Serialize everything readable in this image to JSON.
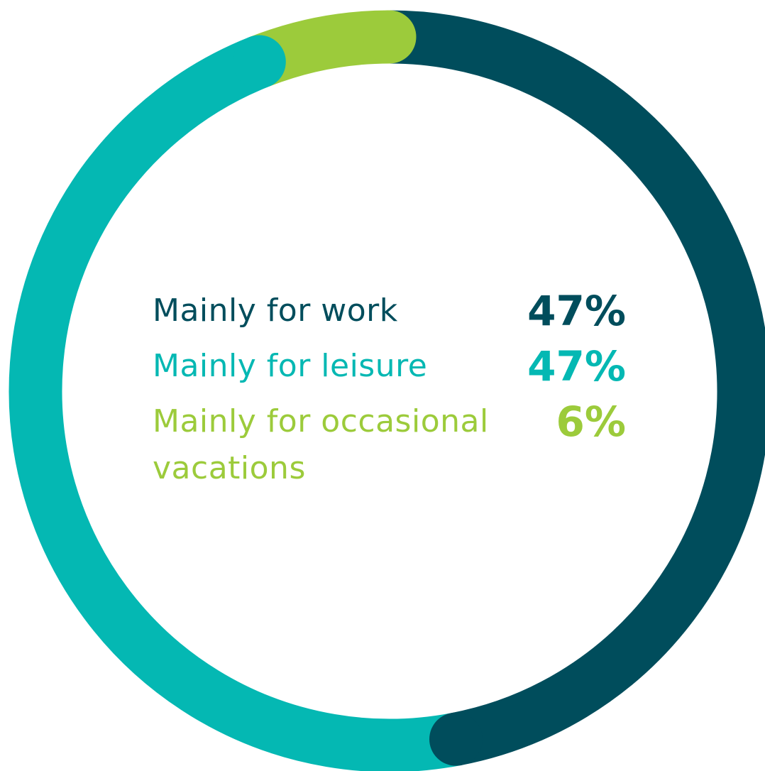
{
  "chart_data": {
    "type": "donut",
    "categories": [
      "Mainly for work",
      "Mainly for leisure",
      "Mainly for occasional vacations"
    ],
    "values": [
      47,
      47,
      6
    ],
    "value_labels": [
      "47%",
      "47%",
      "6%"
    ],
    "colors": [
      "#004d5c",
      "#04b8b3",
      "#9ccb3b"
    ]
  }
}
